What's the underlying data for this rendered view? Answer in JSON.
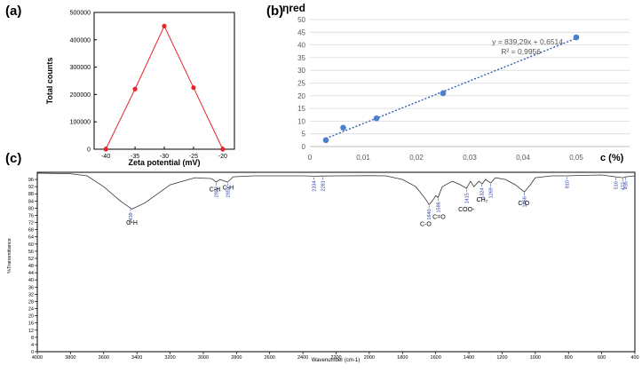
{
  "panels": {
    "a_label": "(a)",
    "b_label": "(b)",
    "c_label": "(c)"
  },
  "chart_data": [
    {
      "panel": "(a)",
      "type": "line",
      "xlabel": "Zeta potential (mV)",
      "ylabel": "Total counts",
      "x": [
        -40,
        -35,
        -30,
        -25,
        -20
      ],
      "y": [
        0,
        220000,
        450000,
        225000,
        0
      ],
      "xticks": [
        -40,
        -35,
        -30,
        -25,
        -20
      ],
      "yticks": [
        0,
        100000,
        200000,
        300000,
        400000,
        500000
      ],
      "xlim": [
        -42,
        -18
      ],
      "ylim": [
        0,
        500000
      ],
      "color": "#e8232a",
      "grid": false
    },
    {
      "panel": "(b)",
      "type": "scatter",
      "ylabel": "ηred",
      "xlabel": "c (%)",
      "x": [
        0.003,
        0.00625,
        0.0125,
        0.025,
        0.05
      ],
      "y": [
        2.5,
        7.4,
        11.1,
        21.0,
        43.0
      ],
      "xticks": [
        "0",
        "0,01",
        "0,02",
        "0,03",
        "0,04",
        "0,05"
      ],
      "xtick_values": [
        0,
        0.01,
        0.02,
        0.03,
        0.04,
        0.05
      ],
      "yticks": [
        0,
        5,
        10,
        15,
        20,
        25,
        30,
        35,
        40,
        45,
        50
      ],
      "xlim": [
        0,
        0.06
      ],
      "ylim": [
        0,
        50
      ],
      "trendline": {
        "slope": 839.29,
        "intercept": 0.6514,
        "equation": "y = 839,29x + 0,6514",
        "r2": "R² = 0,9956"
      },
      "point_color": "#4a7fcf",
      "grid": true
    },
    {
      "panel": "(c)",
      "type": "line",
      "xlabel": "Wavenumber (cm-1)",
      "ylabel": "%Transmittance",
      "xlim": [
        4000,
        400
      ],
      "ylim": [
        0,
        100
      ],
      "xticks": [
        4000,
        3800,
        3600,
        3400,
        3200,
        3000,
        2800,
        2600,
        2400,
        2200,
        2000,
        1800,
        1600,
        1400,
        1200,
        1000,
        800,
        600,
        400
      ],
      "yticks": [
        0,
        4,
        8,
        12,
        16,
        20,
        24,
        28,
        32,
        36,
        40,
        44,
        48,
        52,
        56,
        60,
        64,
        68,
        72,
        76,
        80,
        84,
        88,
        92,
        96
      ],
      "spectrum": [
        [
          4000,
          99.5
        ],
        [
          3800,
          99.2
        ],
        [
          3700,
          98
        ],
        [
          3600,
          92
        ],
        [
          3500,
          84
        ],
        [
          3430,
          79.5
        ],
        [
          3350,
          83
        ],
        [
          3200,
          93
        ],
        [
          3050,
          97
        ],
        [
          2950,
          96.5
        ],
        [
          2922,
          94.5
        ],
        [
          2900,
          96
        ],
        [
          2853,
          94.5
        ],
        [
          2820,
          97.5
        ],
        [
          2700,
          98
        ],
        [
          2400,
          98
        ],
        [
          2334,
          97.8
        ],
        [
          2281,
          97.9
        ],
        [
          2200,
          98
        ],
        [
          2000,
          98.1
        ],
        [
          1900,
          98
        ],
        [
          1800,
          96
        ],
        [
          1720,
          92
        ],
        [
          1660,
          85
        ],
        [
          1640,
          82
        ],
        [
          1620,
          84
        ],
        [
          1600,
          87
        ],
        [
          1586,
          86
        ],
        [
          1560,
          92
        ],
        [
          1500,
          95
        ],
        [
          1450,
          93
        ],
        [
          1415,
          91
        ],
        [
          1390,
          95
        ],
        [
          1370,
          92
        ],
        [
          1340,
          95
        ],
        [
          1320,
          93.5
        ],
        [
          1300,
          96
        ],
        [
          1269,
          94
        ],
        [
          1240,
          97
        ],
        [
          1180,
          96
        ],
        [
          1120,
          93
        ],
        [
          1066,
          89
        ],
        [
          1030,
          93
        ],
        [
          1000,
          97
        ],
        [
          900,
          98
        ],
        [
          810,
          98
        ],
        [
          700,
          98.3
        ],
        [
          600,
          98.5
        ],
        [
          516,
          97.5
        ],
        [
          472,
          97
        ],
        [
          455,
          97.5
        ],
        [
          400,
          98
        ]
      ],
      "peak_labels": [
        "3439",
        "2922",
        "2853",
        "2281",
        "2334",
        "1640",
        "1586",
        "1415",
        "1324",
        "1269",
        "1066",
        "810",
        "516",
        "472",
        "455"
      ],
      "group_labels": [
        "O-H",
        "C-H",
        "C-H",
        "C-O",
        "C=O",
        "COO-",
        "CH₂",
        "C-O"
      ]
    }
  ]
}
